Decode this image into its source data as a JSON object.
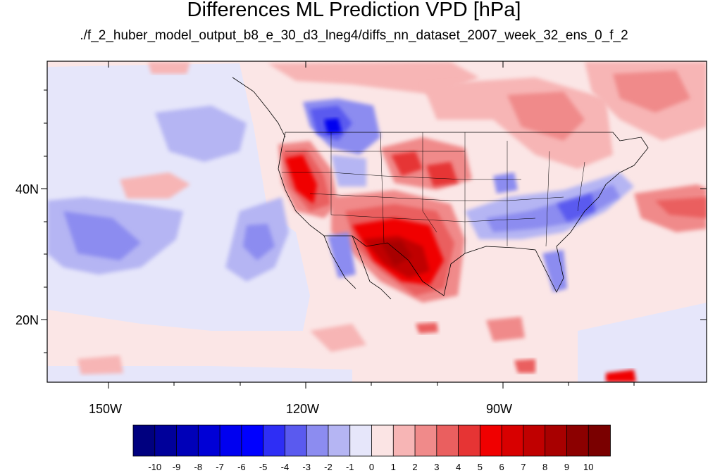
{
  "title": "Differences ML Prediction VPD [hPa]",
  "subtitle": "./f_2_huber_model_output_b8_e_30_d3_lneg4/diffs_nn_dataset_2007_week_32_ens_0_f_2",
  "lat_labels": [
    "40N",
    "20N"
  ],
  "lon_labels": [
    "150W",
    "120W",
    "90W"
  ],
  "colorbar": {
    "labels": [
      "-10",
      "-9",
      "-8",
      "-7",
      "-6",
      "-5",
      "-4",
      "-3",
      "-2",
      "-1",
      "0",
      "1",
      "2",
      "3",
      "4",
      "5",
      "6",
      "7",
      "8",
      "9",
      "10"
    ],
    "colors": [
      "#00007f",
      "#00009a",
      "#0000b8",
      "#0000d6",
      "#0000f0",
      "#0000ff",
      "#2e2ef5",
      "#5a5aef",
      "#8c8cf0",
      "#b5b5f3",
      "#e6e6fa",
      "#fbe4e4",
      "#f7b5b5",
      "#f08a8a",
      "#ea5f5f",
      "#e63434",
      "#f00000",
      "#d80000",
      "#c00000",
      "#a80000",
      "#8c0000",
      "#7a0000"
    ]
  }
}
